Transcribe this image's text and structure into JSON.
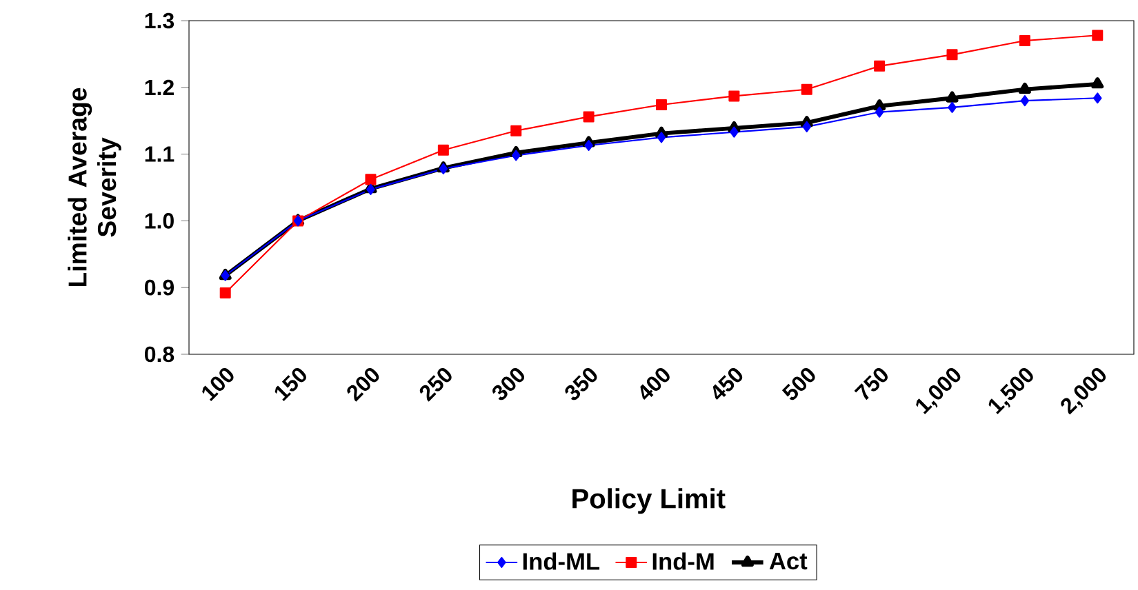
{
  "chart_data": {
    "type": "line",
    "xlabel": "Policy Limit",
    "ylabel": "Limited Average Severity",
    "categories": [
      "100",
      "150",
      "200",
      "250",
      "300",
      "350",
      "400",
      "450",
      "500",
      "750",
      "1,000",
      "1,500",
      "2,000"
    ],
    "series": [
      {
        "name": "Ind-ML",
        "color": "#0000ff",
        "marker": "diamond",
        "values": [
          0.918,
          1.0,
          1.047,
          1.078,
          1.098,
          1.113,
          1.125,
          1.133,
          1.141,
          1.163,
          1.17,
          1.18,
          1.184
        ]
      },
      {
        "name": "Ind-M",
        "color": "#ff0000",
        "marker": "square",
        "values": [
          0.892,
          1.0,
          1.062,
          1.106,
          1.135,
          1.156,
          1.174,
          1.187,
          1.197,
          1.232,
          1.249,
          1.27,
          1.278
        ]
      },
      {
        "name": "Act",
        "color": "#000000",
        "marker": "triangle",
        "values": [
          0.918,
          1.0,
          1.048,
          1.079,
          1.102,
          1.117,
          1.131,
          1.139,
          1.147,
          1.172,
          1.184,
          1.197,
          1.205
        ]
      }
    ],
    "ylim": [
      0.8,
      1.3
    ],
    "yticks": [
      {
        "value": 0.8,
        "label": "0.8"
      },
      {
        "value": 0.9,
        "label": "0.9"
      },
      {
        "value": 1.0,
        "label": "1.0"
      },
      {
        "value": 1.1,
        "label": "1.1"
      },
      {
        "value": 1.2,
        "label": "1.2"
      },
      {
        "value": 1.3,
        "label": "1.3"
      }
    ],
    "grid": false,
    "legend": "bottom",
    "line_style": "solid"
  }
}
